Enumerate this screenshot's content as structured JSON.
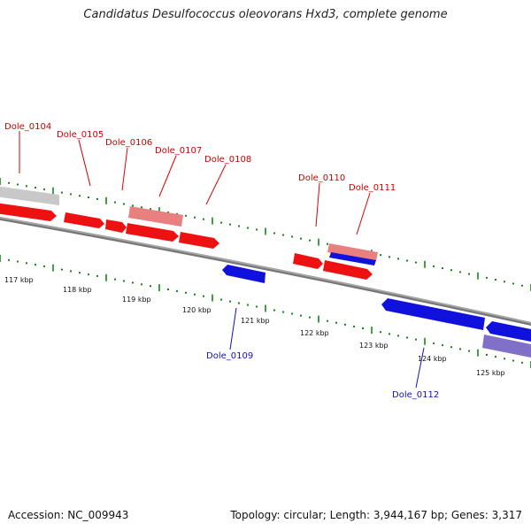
{
  "title": "Candidatus Desulfococcus oleovorans Hxd3, complete genome",
  "footer": {
    "accession": "Accession: NC_009943",
    "summary": "Topology: circular; Length: 3,944,167 bp; Genes: 3,317"
  },
  "colors": {
    "forward_gene": "#ee1111",
    "forward_gene_light": "#e88080",
    "reverse_gene": "#1111dd",
    "reverse_gene_light": "#8070c8",
    "backbone": "#888888",
    "tick": "#118811",
    "label_forward": "#cc0000",
    "label_reverse": "#1111bb"
  },
  "scale_labels": [
    "117 kbp",
    "118 kbp",
    "119 kbp",
    "120 kbp",
    "121 kbp",
    "122 kbp",
    "123 kbp",
    "124 kbp",
    "125 kbp"
  ],
  "gene_labels": [
    {
      "name": "Dole_0104",
      "strand": "forward"
    },
    {
      "name": "Dole_0105",
      "strand": "forward"
    },
    {
      "name": "Dole_0106",
      "strand": "forward"
    },
    {
      "name": "Dole_0107",
      "strand": "forward"
    },
    {
      "name": "Dole_0108",
      "strand": "forward"
    },
    {
      "name": "Dole_0110",
      "strand": "forward"
    },
    {
      "name": "Dole_0111",
      "strand": "forward"
    },
    {
      "name": "Dole_0109",
      "strand": "reverse"
    },
    {
      "name": "Dole_0112",
      "strand": "reverse"
    }
  ]
}
